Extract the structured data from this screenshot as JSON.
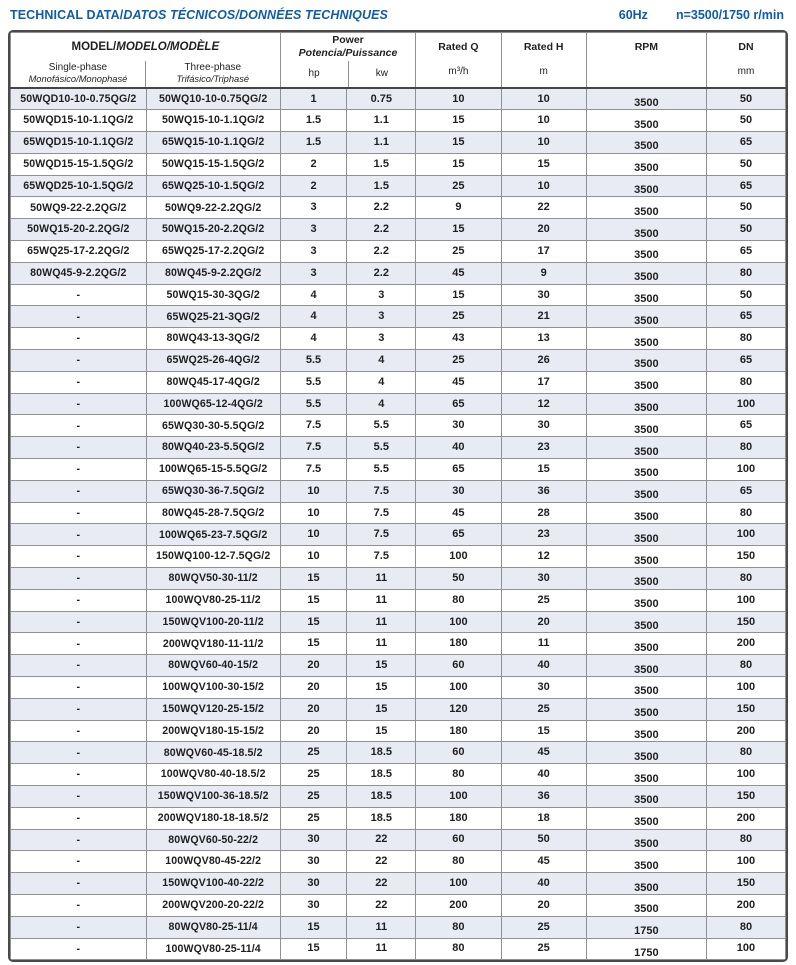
{
  "header": {
    "title_main": "TECHNICAL DATA/",
    "title_italic": "DATOS TÉCNICOS/DONNÉES TECHNIQUES",
    "frequency": "60Hz",
    "speed": "n=3500/1750 r/min",
    "title_color": "#0e5cad"
  },
  "colors": {
    "row_alt_background": "#e9ebf4",
    "grid_border": "#919191",
    "outer_border": "#4a4a4a",
    "text": "#1f1f1f"
  },
  "table": {
    "header": {
      "model_group": "MODEL/",
      "model_group_italic": "MODELO/MODÈLE",
      "single_phase": "Single-phase",
      "single_phase_sub": "Monofásico/Monophasé",
      "three_phase": "Three-phase",
      "three_phase_sub": "Trifásico/Triphasé",
      "power": "Power",
      "power_sub": "Potencia/Puissance",
      "hp": "hp",
      "kw": "kw",
      "rated_q": "Rated Q",
      "rated_q_unit": "m³/h",
      "rated_h": "Rated H",
      "rated_h_unit": "m",
      "rpm": "RPM",
      "dn": "DN",
      "dn_unit": "mm"
    },
    "columns": [
      "single_phase_model",
      "three_phase_model",
      "hp",
      "kw",
      "rated_q",
      "rated_h",
      "rpm",
      "dn"
    ],
    "rows": [
      [
        "50WQD10-10-0.75QG/2",
        "50WQ10-10-0.75QG/2",
        "1",
        "0.75",
        "10",
        "10",
        "3500",
        "50"
      ],
      [
        "50WQD15-10-1.1QG/2",
        "50WQ15-10-1.1QG/2",
        "1.5",
        "1.1",
        "15",
        "10",
        "3500",
        "50"
      ],
      [
        "65WQD15-10-1.1QG/2",
        "65WQ15-10-1.1QG/2",
        "1.5",
        "1.1",
        "15",
        "10",
        "3500",
        "65"
      ],
      [
        "50WQD15-15-1.5QG/2",
        "50WQ15-15-1.5QG/2",
        "2",
        "1.5",
        "15",
        "15",
        "3500",
        "50"
      ],
      [
        "65WQD25-10-1.5QG/2",
        "65WQ25-10-1.5QG/2",
        "2",
        "1.5",
        "25",
        "10",
        "3500",
        "65"
      ],
      [
        "50WQ9-22-2.2QG/2",
        "50WQ9-22-2.2QG/2",
        "3",
        "2.2",
        "9",
        "22",
        "3500",
        "50"
      ],
      [
        "50WQ15-20-2.2QG/2",
        "50WQ15-20-2.2QG/2",
        "3",
        "2.2",
        "15",
        "20",
        "3500",
        "50"
      ],
      [
        "65WQ25-17-2.2QG/2",
        "65WQ25-17-2.2QG/2",
        "3",
        "2.2",
        "25",
        "17",
        "3500",
        "65"
      ],
      [
        "80WQ45-9-2.2QG/2",
        "80WQ45-9-2.2QG/2",
        "3",
        "2.2",
        "45",
        "9",
        "3500",
        "80"
      ],
      [
        "-",
        "50WQ15-30-3QG/2",
        "4",
        "3",
        "15",
        "30",
        "3500",
        "50"
      ],
      [
        "-",
        "65WQ25-21-3QG/2",
        "4",
        "3",
        "25",
        "21",
        "3500",
        "65"
      ],
      [
        "-",
        "80WQ43-13-3QG/2",
        "4",
        "3",
        "43",
        "13",
        "3500",
        "80"
      ],
      [
        "-",
        "65WQ25-26-4QG/2",
        "5.5",
        "4",
        "25",
        "26",
        "3500",
        "65"
      ],
      [
        "-",
        "80WQ45-17-4QG/2",
        "5.5",
        "4",
        "45",
        "17",
        "3500",
        "80"
      ],
      [
        "-",
        "100WQ65-12-4QG/2",
        "5.5",
        "4",
        "65",
        "12",
        "3500",
        "100"
      ],
      [
        "-",
        "65WQ30-30-5.5QG/2",
        "7.5",
        "5.5",
        "30",
        "30",
        "3500",
        "65"
      ],
      [
        "-",
        "80WQ40-23-5.5QG/2",
        "7.5",
        "5.5",
        "40",
        "23",
        "3500",
        "80"
      ],
      [
        "-",
        "100WQ65-15-5.5QG/2",
        "7.5",
        "5.5",
        "65",
        "15",
        "3500",
        "100"
      ],
      [
        "-",
        "65WQ30-36-7.5QG/2",
        "10",
        "7.5",
        "30",
        "36",
        "3500",
        "65"
      ],
      [
        "-",
        "80WQ45-28-7.5QG/2",
        "10",
        "7.5",
        "45",
        "28",
        "3500",
        "80"
      ],
      [
        "-",
        "100WQ65-23-7.5QG/2",
        "10",
        "7.5",
        "65",
        "23",
        "3500",
        "100"
      ],
      [
        "-",
        "150WQ100-12-7.5QG/2",
        "10",
        "7.5",
        "100",
        "12",
        "3500",
        "150"
      ],
      [
        "-",
        "80WQV50-30-11/2",
        "15",
        "11",
        "50",
        "30",
        "3500",
        "80"
      ],
      [
        "-",
        "100WQV80-25-11/2",
        "15",
        "11",
        "80",
        "25",
        "3500",
        "100"
      ],
      [
        "-",
        "150WQV100-20-11/2",
        "15",
        "11",
        "100",
        "20",
        "3500",
        "150"
      ],
      [
        "-",
        "200WQV180-11-11/2",
        "15",
        "11",
        "180",
        "11",
        "3500",
        "200"
      ],
      [
        "-",
        "80WQV60-40-15/2",
        "20",
        "15",
        "60",
        "40",
        "3500",
        "80"
      ],
      [
        "-",
        "100WQV100-30-15/2",
        "20",
        "15",
        "100",
        "30",
        "3500",
        "100"
      ],
      [
        "-",
        "150WQV120-25-15/2",
        "20",
        "15",
        "120",
        "25",
        "3500",
        "150"
      ],
      [
        "-",
        "200WQV180-15-15/2",
        "20",
        "15",
        "180",
        "15",
        "3500",
        "200"
      ],
      [
        "-",
        "80WQV60-45-18.5/2",
        "25",
        "18.5",
        "60",
        "45",
        "3500",
        "80"
      ],
      [
        "-",
        "100WQV80-40-18.5/2",
        "25",
        "18.5",
        "80",
        "40",
        "3500",
        "100"
      ],
      [
        "-",
        "150WQV100-36-18.5/2",
        "25",
        "18.5",
        "100",
        "36",
        "3500",
        "150"
      ],
      [
        "-",
        "200WQV180-18-18.5/2",
        "25",
        "18.5",
        "180",
        "18",
        "3500",
        "200"
      ],
      [
        "-",
        "80WQV60-50-22/2",
        "30",
        "22",
        "60",
        "50",
        "3500",
        "80"
      ],
      [
        "-",
        "100WQV80-45-22/2",
        "30",
        "22",
        "80",
        "45",
        "3500",
        "100"
      ],
      [
        "-",
        "150WQV100-40-22/2",
        "30",
        "22",
        "100",
        "40",
        "3500",
        "150"
      ],
      [
        "-",
        "200WQV200-20-22/2",
        "30",
        "22",
        "200",
        "20",
        "3500",
        "200"
      ],
      [
        "-",
        "80WQV80-25-11/4",
        "15",
        "11",
        "80",
        "25",
        "1750",
        "80"
      ],
      [
        "-",
        "100WQV80-25-11/4",
        "15",
        "11",
        "80",
        "25",
        "1750",
        "100"
      ]
    ]
  }
}
